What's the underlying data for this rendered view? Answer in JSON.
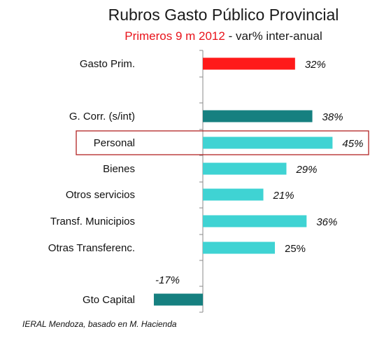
{
  "title": "Rubros Gasto Público Provincial",
  "subtitle_red": "Primeros 9 m 2012",
  "subtitle_rest": " - var% inter-anual",
  "source": "IERAL Mendoza, basado en M. Hacienda",
  "colors": {
    "highlight_red": "#ff1a1a",
    "dark_teal": "#168080",
    "light_teal": "#3fd3d3",
    "box_border": "#b22222"
  },
  "chart_data": {
    "type": "bar",
    "orientation": "horizontal",
    "categories": [
      "Gasto Prim.",
      "G. Corr. (s/int)",
      "Personal",
      "Bienes",
      "Otros servicios",
      "Transf. Municipios",
      "Otras Transferenc.",
      "Gto Capital"
    ],
    "values": [
      32,
      38,
      45,
      29,
      21,
      36,
      25,
      -17
    ],
    "value_labels": [
      "32%",
      "38%",
      "45%",
      "29%",
      "21%",
      "36%",
      "25%",
      "-17%"
    ],
    "label_italic": [
      true,
      true,
      true,
      true,
      true,
      true,
      false,
      true
    ],
    "bar_colors": [
      "#ff1a1a",
      "#168080",
      "#3fd3d3",
      "#3fd3d3",
      "#3fd3d3",
      "#3fd3d3",
      "#3fd3d3",
      "#168080"
    ],
    "highlighted_category": "Personal",
    "unit": "%"
  }
}
